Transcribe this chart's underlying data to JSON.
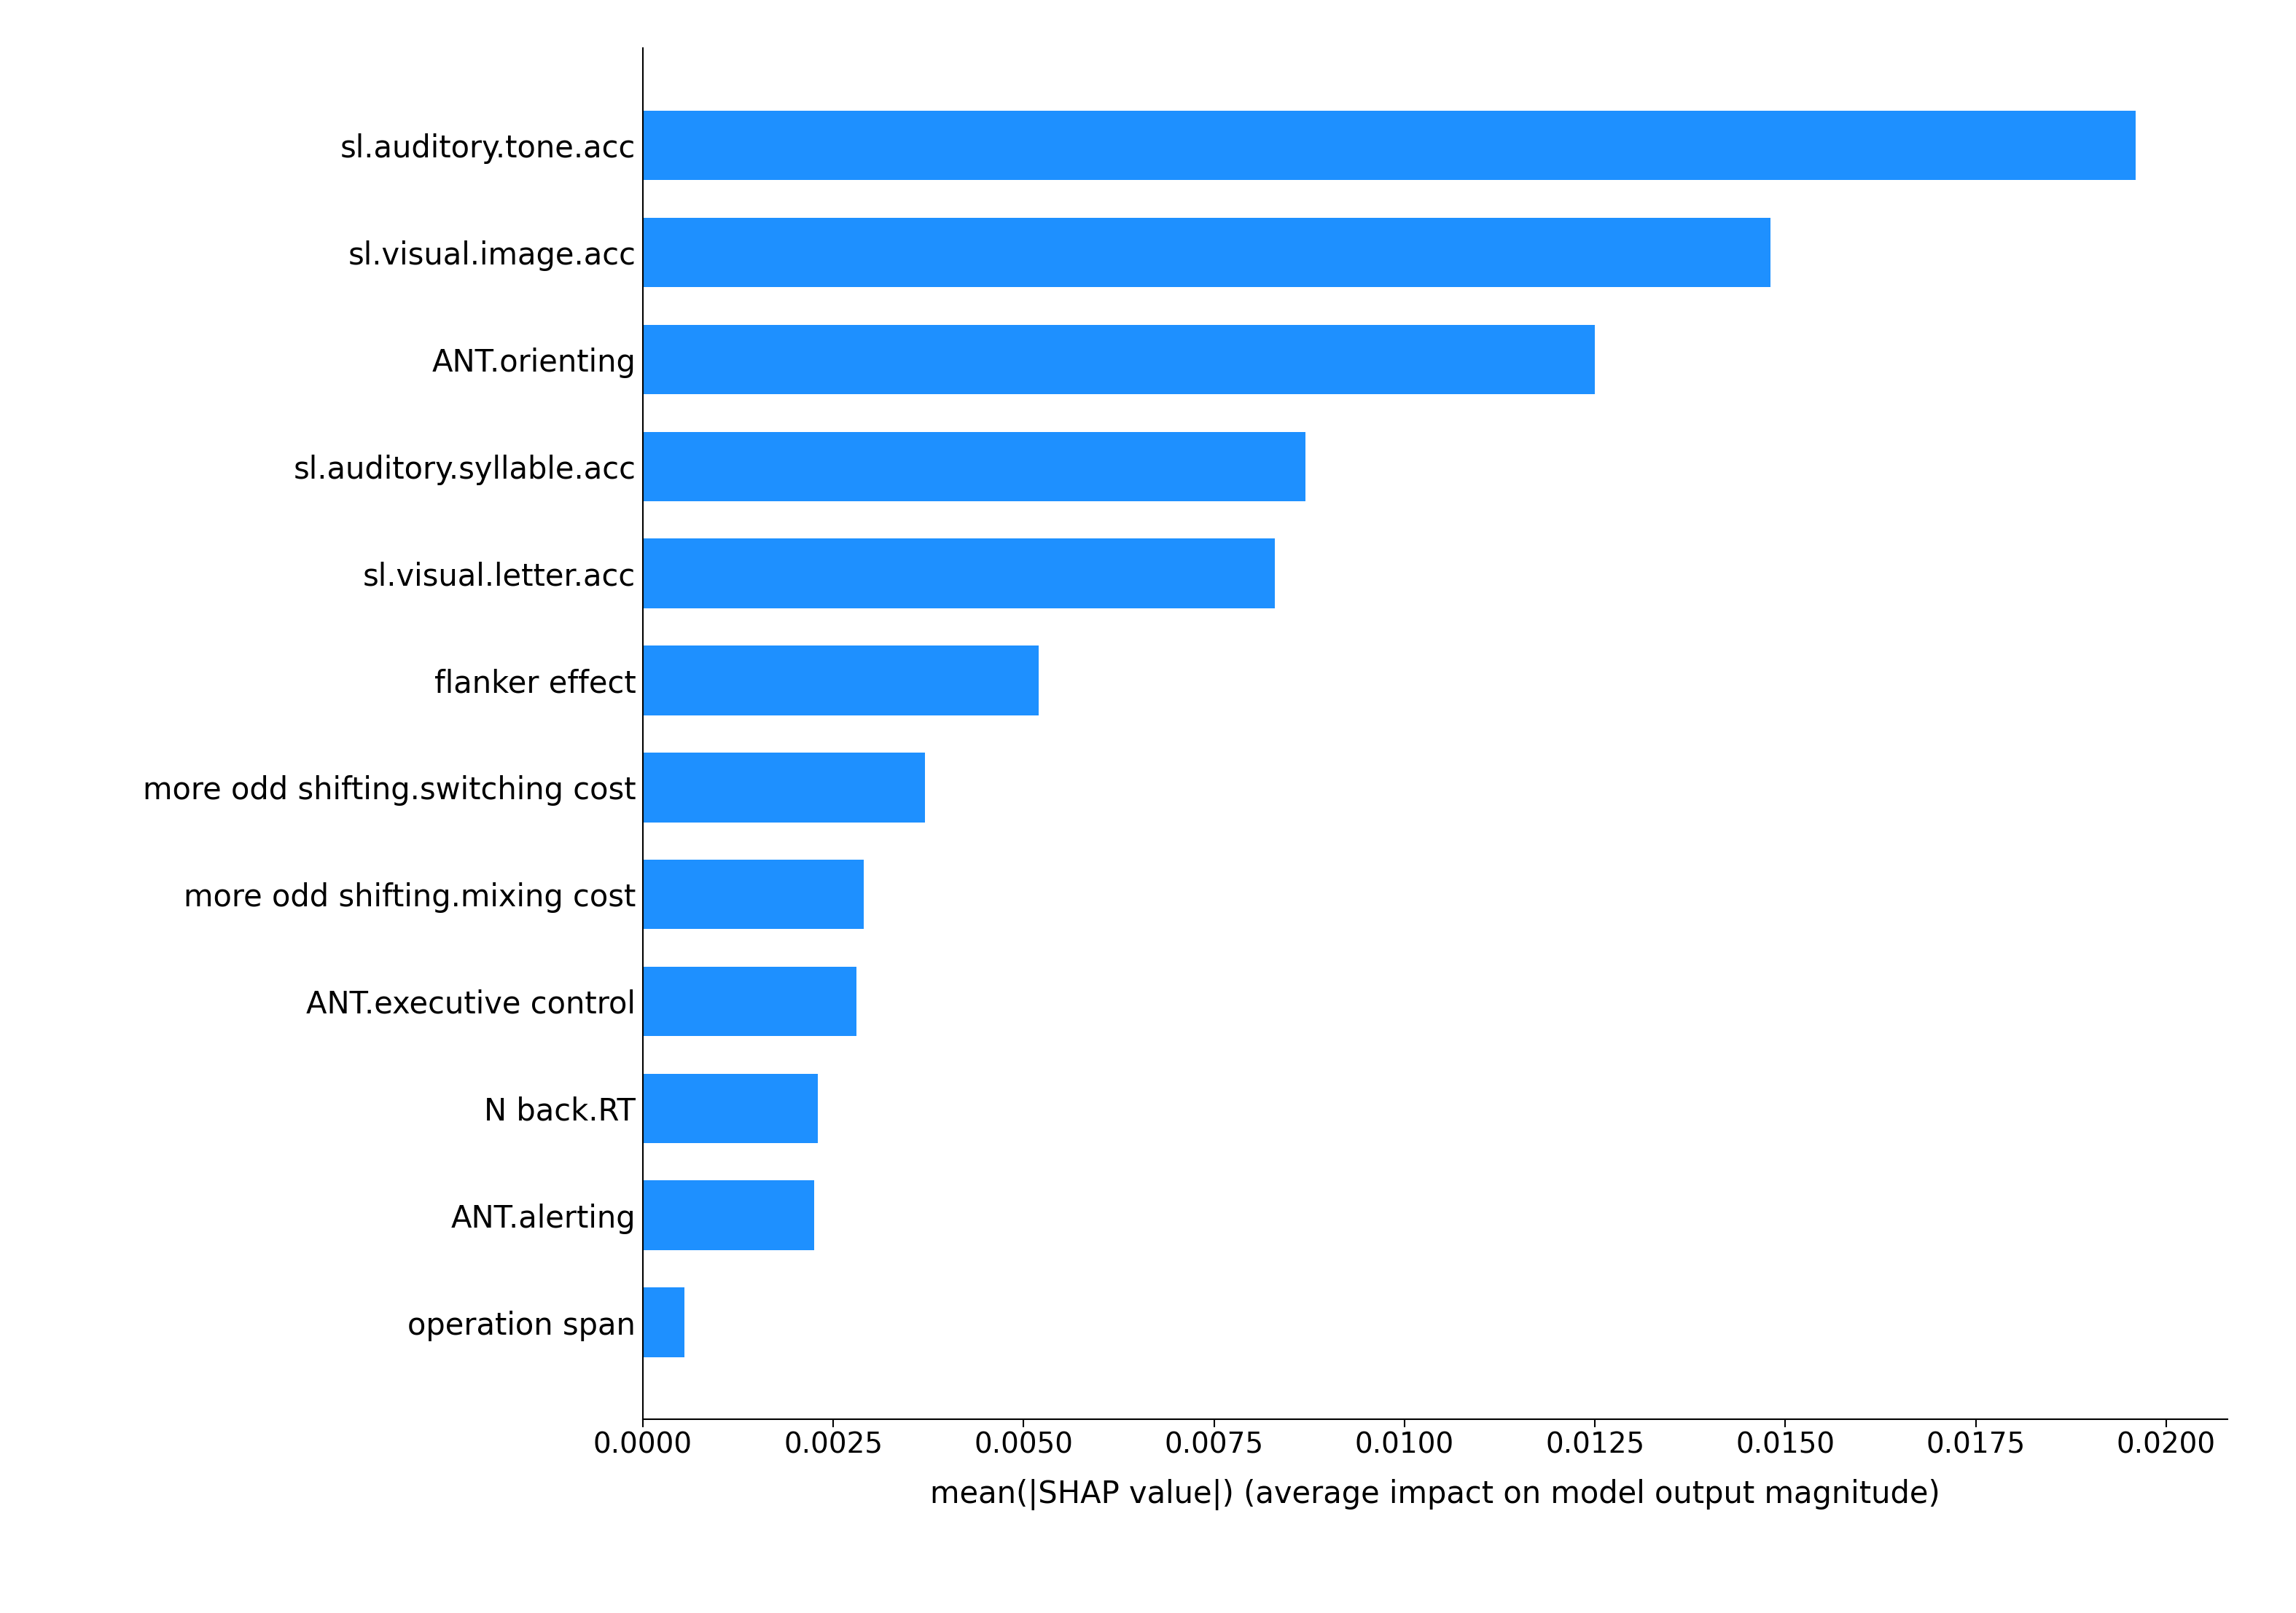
{
  "categories": [
    "sl.auditory.tone.acc",
    "sl.visual.image.acc",
    "ANT.orienting",
    "sl.auditory.syllable.acc",
    "sl.visual.letter.acc",
    "flanker effect",
    "more odd shifting.switching cost",
    "more odd shifting.mixing cost",
    "ANT.executive control",
    "N back.RT",
    "ANT.alerting",
    "operation span"
  ],
  "values": [
    0.0196,
    0.0148,
    0.0125,
    0.0087,
    0.0083,
    0.0052,
    0.0037,
    0.0029,
    0.0028,
    0.0023,
    0.00225,
    0.00055
  ],
  "bar_color": "#1E90FF",
  "background_color": "#FFFFFF",
  "xlabel": "mean(|SHAP value|) (average impact on model output magnitude)",
  "xlim": [
    0,
    0.0208
  ],
  "xticks": [
    0.0,
    0.0025,
    0.005,
    0.0075,
    0.01,
    0.0125,
    0.015,
    0.0175,
    0.02
  ],
  "xtick_labels": [
    "0.0000",
    "0.0025",
    "0.0050",
    "0.0075",
    "0.0100",
    "0.0125",
    "0.0150",
    "0.0175",
    "0.0200"
  ],
  "xlabel_fontsize": 30,
  "tick_fontsize": 28,
  "label_fontsize": 30,
  "bar_height": 0.65
}
